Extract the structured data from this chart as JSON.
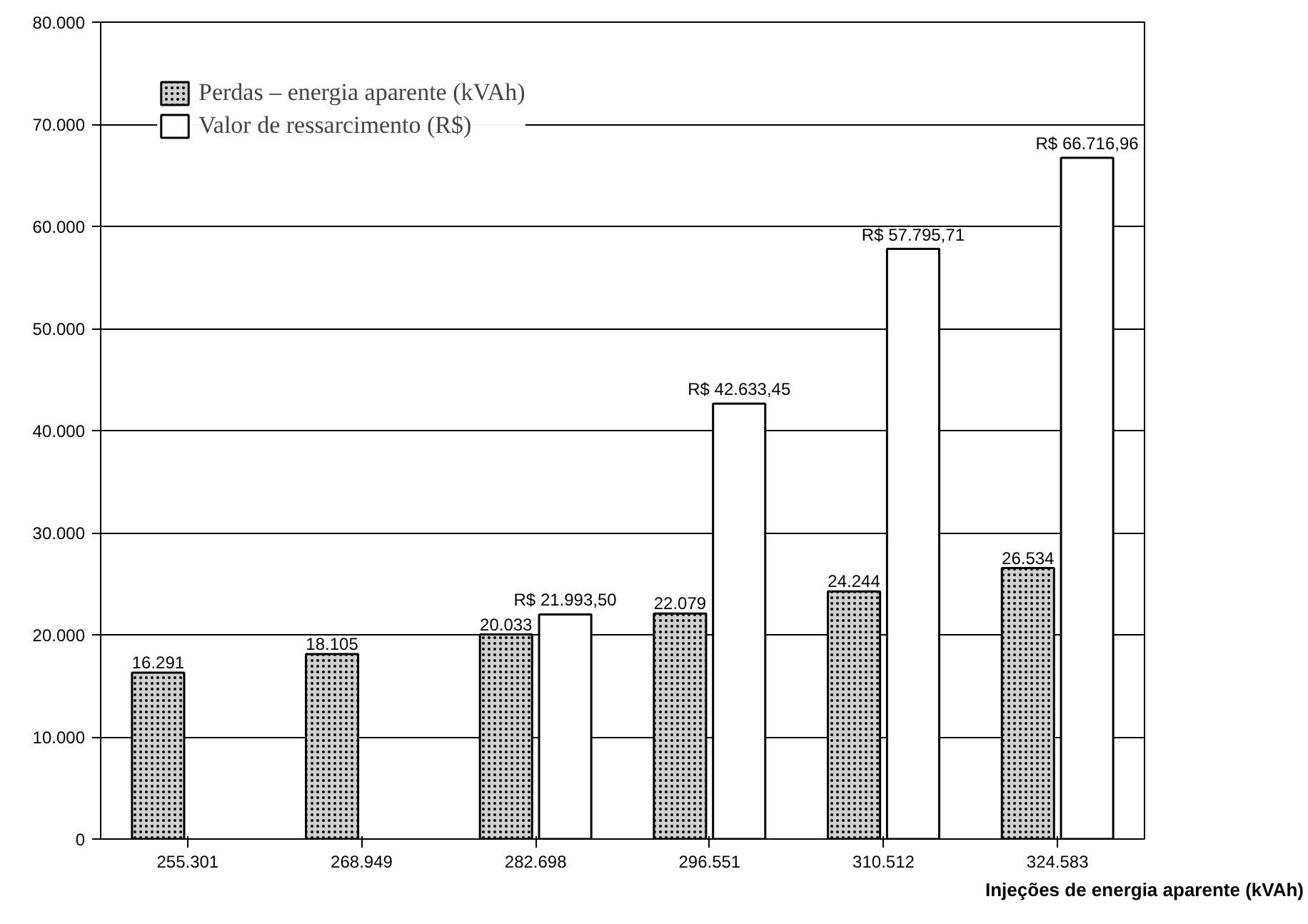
{
  "chart_data": {
    "type": "bar",
    "xlabel": "Injeções de energia aparente (kVAh)",
    "categories": [
      "255.301",
      "268.949",
      "282.698",
      "296.551",
      "310.512",
      "324.583"
    ],
    "series": [
      {
        "name": "Perdas – energia aparente (kVAh)",
        "color": "#d0d0d0",
        "values": [
          16291,
          18105,
          20033,
          22079,
          24244,
          26534
        ],
        "value_labels": [
          "16.291",
          "18.105",
          "20.033",
          "22.079",
          "24.244",
          "26.534"
        ]
      },
      {
        "name": "Valor de ressarcimento (R$)",
        "color": "#ffffff",
        "values": [
          null,
          null,
          21993.5,
          42633.45,
          57795.71,
          66716.96
        ],
        "value_labels": [
          null,
          null,
          "R$ 21.993,50",
          "R$ 42.633,45",
          "R$ 57.795,71",
          "R$ 66.716,96"
        ]
      }
    ],
    "ylim": [
      0,
      80000
    ],
    "yticks": [
      {
        "value": 0,
        "label": "0"
      },
      {
        "value": 10000,
        "label": "10.000"
      },
      {
        "value": 20000,
        "label": "20.000"
      },
      {
        "value": 30000,
        "label": "30.000"
      },
      {
        "value": 40000,
        "label": "40.000"
      },
      {
        "value": 50000,
        "label": "50.000"
      },
      {
        "value": 60000,
        "label": "60.000"
      },
      {
        "value": 70000,
        "label": "70.000"
      },
      {
        "value": 80000,
        "label": "80.000"
      }
    ],
    "grid": "y",
    "legend": "top left"
  }
}
